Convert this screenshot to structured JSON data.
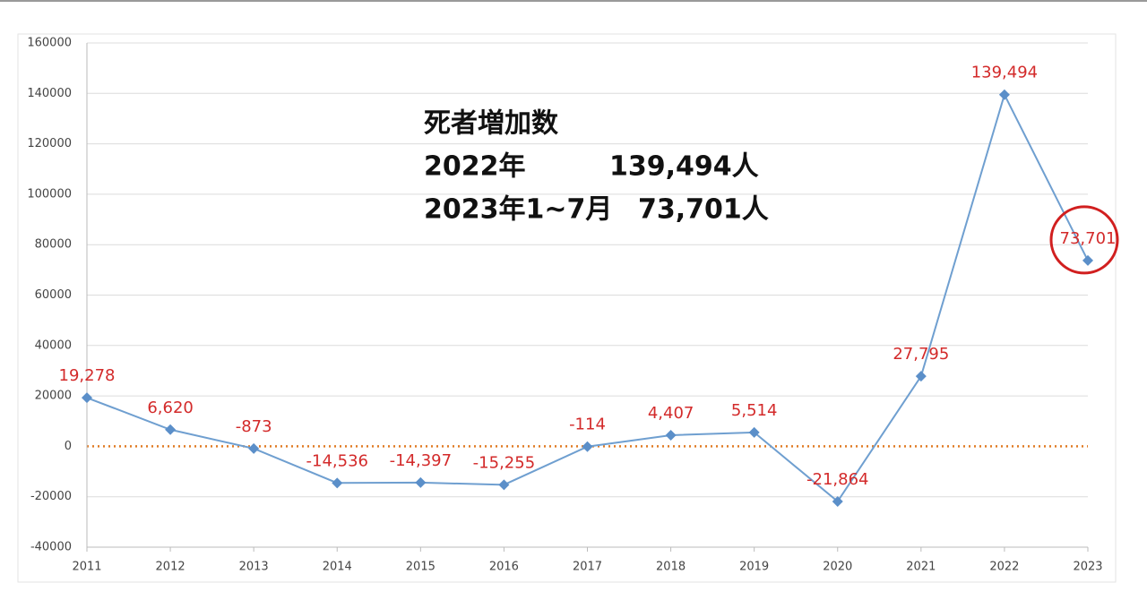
{
  "chart_data": {
    "type": "line",
    "categories": [
      "2011",
      "2012",
      "2013",
      "2014",
      "2015",
      "2016",
      "2017",
      "2018",
      "2019",
      "2020",
      "2021",
      "2022",
      "2023"
    ],
    "series": [
      {
        "color": "#6f9fd0",
        "values": [
          19278,
          6620,
          -873,
          -14536,
          -14397,
          -15255,
          -114,
          4407,
          5514,
          -21864,
          27795,
          139494,
          73701
        ],
        "value_labels": [
          "19,278",
          "6,620",
          "-873",
          "-14,536",
          "-14,397",
          "-15,255",
          "-114",
          "4,407",
          "5,514",
          "-21,864",
          "27,795",
          "139,494",
          "73,701"
        ]
      }
    ],
    "ylim": [
      -40000,
      160000
    ],
    "yticks": [
      -40000,
      -20000,
      0,
      20000,
      40000,
      60000,
      80000,
      100000,
      120000,
      140000,
      160000
    ],
    "grid": true,
    "annotation": {
      "title": "死者増加数",
      "rows": [
        [
          "2022年",
          "139,494人"
        ],
        [
          "2023年1~7月",
          "73,701人"
        ]
      ]
    }
  }
}
